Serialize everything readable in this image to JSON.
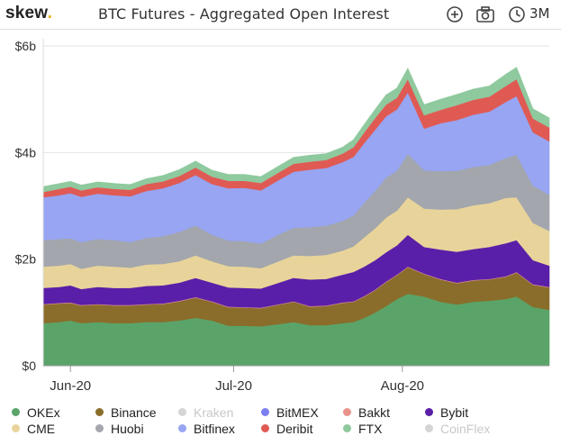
{
  "header": {
    "logo": "skew",
    "logo_dot": ".",
    "title": "BTC Futures - Aggregated Open Interest",
    "range_label": "3M",
    "icons": [
      "zoom-in-icon",
      "camera-icon",
      "clock-icon"
    ]
  },
  "chart_data": {
    "type": "area",
    "stacked": true,
    "x_ticks": [
      "Jun-20",
      "Jul-20",
      "Aug-20"
    ],
    "y_ticks": [
      "$0",
      "$2b",
      "$4b",
      "$6b"
    ],
    "ylim": [
      0,
      6
    ],
    "grid": true,
    "legend_position": "bottom",
    "categories": [
      "2020-05-27",
      "2020-05-30",
      "2020-06-01",
      "2020-06-03",
      "2020-06-06",
      "2020-06-09",
      "2020-06-12",
      "2020-06-15",
      "2020-06-18",
      "2020-06-21",
      "2020-06-24",
      "2020-06-27",
      "2020-06-30",
      "2020-07-03",
      "2020-07-06",
      "2020-07-09",
      "2020-07-12",
      "2020-07-15",
      "2020-07-18",
      "2020-07-21",
      "2020-07-23",
      "2020-07-25",
      "2020-07-27",
      "2020-07-29",
      "2020-07-31",
      "2020-08-02",
      "2020-08-05",
      "2020-08-08",
      "2020-08-11",
      "2020-08-14",
      "2020-08-17",
      "2020-08-20",
      "2020-08-22",
      "2020-08-25",
      "2020-08-28"
    ],
    "series": [
      {
        "name": "OKEx",
        "color": "#5aa469",
        "visible": true,
        "values": [
          0.8,
          0.82,
          0.85,
          0.8,
          0.82,
          0.8,
          0.8,
          0.82,
          0.82,
          0.85,
          0.9,
          0.85,
          0.75,
          0.75,
          0.74,
          0.78,
          0.82,
          0.76,
          0.76,
          0.8,
          0.82,
          0.9,
          1.0,
          1.12,
          1.25,
          1.35,
          1.3,
          1.2,
          1.15,
          1.2,
          1.22,
          1.25,
          1.3,
          1.1,
          1.05
        ]
      },
      {
        "name": "Binance",
        "color": "#8a6d2b",
        "visible": true,
        "values": [
          0.35,
          0.35,
          0.33,
          0.33,
          0.33,
          0.33,
          0.33,
          0.33,
          0.34,
          0.36,
          0.38,
          0.35,
          0.35,
          0.34,
          0.34,
          0.36,
          0.38,
          0.35,
          0.36,
          0.38,
          0.38,
          0.4,
          0.42,
          0.45,
          0.45,
          0.5,
          0.42,
          0.42,
          0.4,
          0.4,
          0.4,
          0.42,
          0.45,
          0.42,
          0.42
        ]
      },
      {
        "name": "Kraken",
        "color": "#d5d5d5",
        "visible": false,
        "values": [
          0,
          0,
          0,
          0,
          0,
          0,
          0,
          0,
          0,
          0,
          0,
          0,
          0,
          0,
          0,
          0,
          0,
          0,
          0,
          0,
          0,
          0,
          0,
          0,
          0,
          0,
          0,
          0,
          0,
          0,
          0,
          0,
          0,
          0,
          0
        ]
      },
      {
        "name": "BitMEX",
        "color": "#7b7ff0",
        "visible": true,
        "values": [
          0,
          0,
          0,
          0,
          0,
          0,
          0,
          0,
          0,
          0,
          0,
          0,
          0,
          0,
          0,
          0,
          0,
          0,
          0,
          0,
          0,
          0,
          0,
          0,
          0,
          0,
          0,
          0,
          0,
          0,
          0,
          0,
          0,
          0,
          0
        ]
      },
      {
        "name": "Bakkt",
        "color": "#e8948c",
        "visible": true,
        "values": [
          0.01,
          0.01,
          0.01,
          0.01,
          0.01,
          0.01,
          0.01,
          0.01,
          0.01,
          0.01,
          0.01,
          0.01,
          0.01,
          0.01,
          0.01,
          0.01,
          0.01,
          0.01,
          0.01,
          0.01,
          0.01,
          0.01,
          0.01,
          0.01,
          0.01,
          0.01,
          0.01,
          0.01,
          0.01,
          0.01,
          0.01,
          0.01,
          0.01,
          0.01,
          0.01
        ]
      },
      {
        "name": "Bybit",
        "color": "#5a1fa8",
        "visible": true,
        "values": [
          0.3,
          0.3,
          0.32,
          0.3,
          0.32,
          0.32,
          0.32,
          0.34,
          0.34,
          0.34,
          0.36,
          0.35,
          0.36,
          0.36,
          0.36,
          0.4,
          0.44,
          0.5,
          0.5,
          0.52,
          0.55,
          0.55,
          0.55,
          0.55,
          0.55,
          0.6,
          0.5,
          0.55,
          0.58,
          0.58,
          0.6,
          0.62,
          0.6,
          0.45,
          0.4
        ]
      },
      {
        "name": "CME",
        "color": "#e8d49a",
        "visible": true,
        "values": [
          0.4,
          0.4,
          0.4,
          0.38,
          0.4,
          0.4,
          0.38,
          0.4,
          0.4,
          0.4,
          0.42,
          0.4,
          0.4,
          0.4,
          0.38,
          0.4,
          0.42,
          0.44,
          0.45,
          0.45,
          0.48,
          0.55,
          0.6,
          0.65,
          0.65,
          0.7,
          0.72,
          0.75,
          0.8,
          0.82,
          0.82,
          0.85,
          0.8,
          0.7,
          0.65
        ]
      },
      {
        "name": "Huobi",
        "color": "#a3a6ad",
        "visible": true,
        "values": [
          0.5,
          0.5,
          0.48,
          0.5,
          0.5,
          0.5,
          0.48,
          0.5,
          0.52,
          0.55,
          0.56,
          0.5,
          0.48,
          0.48,
          0.46,
          0.5,
          0.52,
          0.54,
          0.55,
          0.56,
          0.58,
          0.65,
          0.7,
          0.75,
          0.75,
          0.82,
          0.72,
          0.72,
          0.72,
          0.72,
          0.72,
          0.75,
          0.8,
          0.7,
          0.68
        ]
      },
      {
        "name": "Bitfinex",
        "color": "#97a5f2",
        "visible": true,
        "values": [
          0.8,
          0.82,
          0.85,
          0.85,
          0.85,
          0.84,
          0.86,
          0.88,
          0.9,
          0.92,
          0.95,
          0.95,
          0.98,
          1.0,
          1.0,
          1.02,
          1.05,
          1.08,
          1.08,
          1.1,
          1.1,
          1.12,
          1.15,
          1.15,
          1.15,
          1.15,
          0.78,
          0.9,
          0.95,
          0.98,
          1.0,
          1.05,
          1.1,
          1.0,
          1.0
        ]
      },
      {
        "name": "Deribit",
        "color": "#e05a54",
        "visible": true,
        "values": [
          0.1,
          0.12,
          0.12,
          0.12,
          0.12,
          0.12,
          0.12,
          0.13,
          0.13,
          0.13,
          0.14,
          0.14,
          0.14,
          0.13,
          0.14,
          0.14,
          0.15,
          0.15,
          0.15,
          0.16,
          0.18,
          0.2,
          0.22,
          0.22,
          0.22,
          0.25,
          0.25,
          0.25,
          0.28,
          0.28,
          0.28,
          0.3,
          0.32,
          0.26,
          0.26
        ]
      },
      {
        "name": "FTX",
        "color": "#8fc99e",
        "visible": true,
        "values": [
          0.1,
          0.1,
          0.1,
          0.1,
          0.1,
          0.1,
          0.1,
          0.1,
          0.11,
          0.12,
          0.12,
          0.12,
          0.12,
          0.12,
          0.12,
          0.12,
          0.12,
          0.12,
          0.12,
          0.12,
          0.14,
          0.15,
          0.16,
          0.18,
          0.18,
          0.2,
          0.2,
          0.2,
          0.2,
          0.2,
          0.2,
          0.22,
          0.22,
          0.18,
          0.18
        ]
      },
      {
        "name": "CoinFlex",
        "color": "#d5d5d5",
        "visible": false,
        "values": [
          0,
          0,
          0,
          0,
          0,
          0,
          0,
          0,
          0,
          0,
          0,
          0,
          0,
          0,
          0,
          0,
          0,
          0,
          0,
          0,
          0,
          0,
          0,
          0,
          0,
          0,
          0,
          0,
          0,
          0,
          0,
          0,
          0,
          0,
          0
        ]
      }
    ]
  }
}
